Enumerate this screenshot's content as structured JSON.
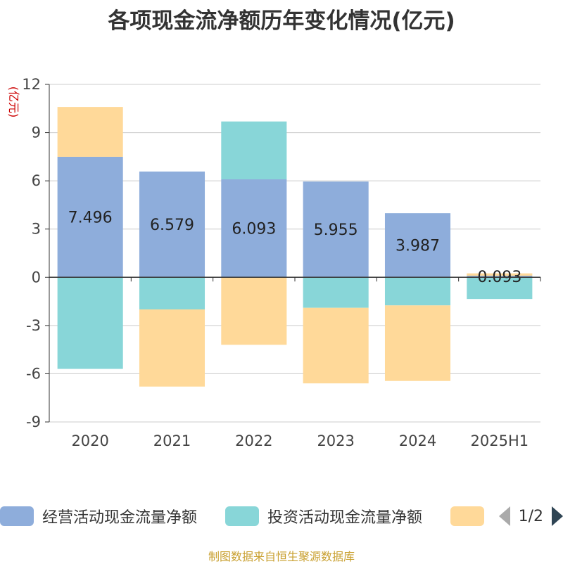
{
  "title": "各项现金流净额历年变化情况(亿元)",
  "source": "制图数据来自恒生聚源数据库",
  "chart_data": {
    "type": "bar",
    "stacked": true,
    "unit_label": "(亿元)",
    "categories": [
      "2020",
      "2021",
      "2022",
      "2023",
      "2024",
      "2025H1"
    ],
    "ylim": [
      -9,
      12
    ],
    "yticks": [
      12,
      9,
      6,
      3,
      0,
      -3,
      -6,
      -9
    ],
    "grid": true,
    "legend_position": "bottom",
    "series": [
      {
        "name": "经营活动现金流量净额",
        "color": "#8eaddb",
        "values": [
          7.496,
          6.579,
          6.093,
          5.955,
          3.987,
          0.093
        ],
        "labels": [
          "7.496",
          "6.579",
          "6.093",
          "5.955",
          "3.987",
          "0.093"
        ]
      },
      {
        "name": "投资活动现金流量净额",
        "color": "#88d6d8",
        "values": [
          -5.7,
          -2.0,
          3.6,
          -1.9,
          -1.75,
          -1.35
        ]
      },
      {
        "name": "",
        "color": "#ffd999",
        "values": [
          3.1,
          -4.8,
          -4.2,
          -4.7,
          -4.7,
          0.15
        ]
      }
    ]
  },
  "legend": {
    "pager_text": "1/2"
  }
}
